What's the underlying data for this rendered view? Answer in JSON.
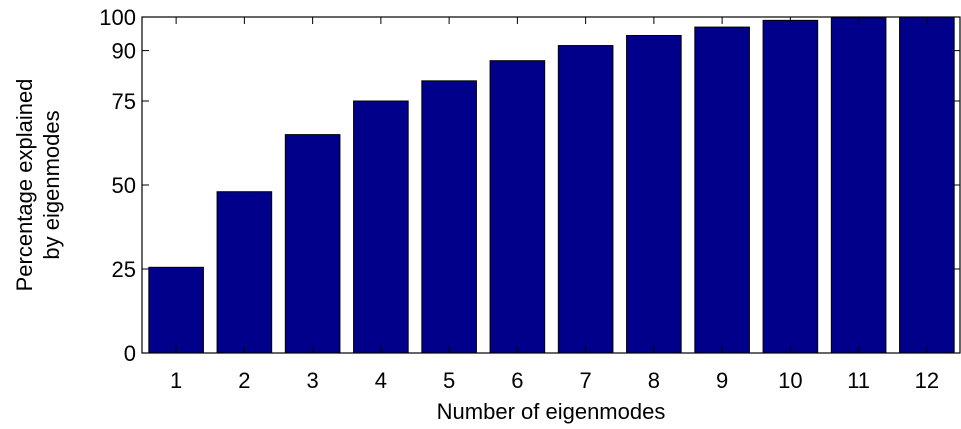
{
  "chart_data": {
    "type": "bar",
    "title": "",
    "xlabel": "Number of eigenmodes",
    "ylabel_lines": [
      "Percentage explained",
      "by eigenmodes"
    ],
    "categories": [
      "1",
      "2",
      "3",
      "4",
      "5",
      "6",
      "7",
      "8",
      "9",
      "10",
      "11",
      "12"
    ],
    "values": [
      25.5,
      48,
      65,
      75,
      81,
      87,
      91.5,
      94.5,
      97,
      99,
      99.8,
      100
    ],
    "ylim": [
      0,
      100
    ],
    "yticks": [
      0,
      25,
      50,
      75,
      90,
      100
    ],
    "grid": false,
    "legend": "none",
    "bar_color": "#00008b",
    "axis_color": "#000000"
  }
}
